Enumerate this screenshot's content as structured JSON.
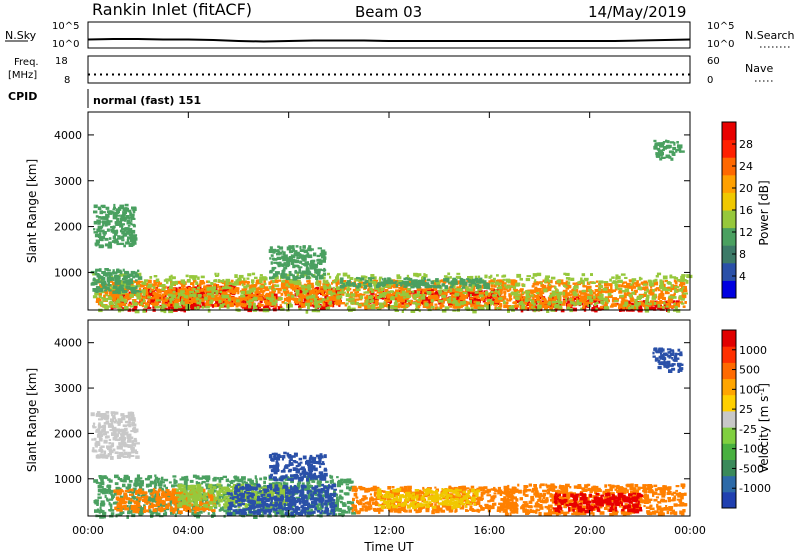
{
  "header": {
    "site": "Rankin Inlet (fitACF)",
    "beam": "Beam 03",
    "date": "14/May/2019"
  },
  "strip_labels": {
    "nsky": "N.Sky",
    "nsearch": "N.Search",
    "freq_top": "Freq.",
    "freq_unit": "[MHz]",
    "nave": "Nave",
    "cpid": "CPID",
    "cpid_value": "normal (fast) 151",
    "noise_left_ticks": [
      "10^5",
      "10^0"
    ],
    "noise_right_ticks": [
      "10^5",
      "10^0"
    ],
    "freq_left_ticks": [
      "18",
      "8"
    ],
    "freq_right_ticks": [
      "60",
      "0"
    ]
  },
  "colorbars": {
    "power": {
      "label": "Power [dB]",
      "ticks": [
        "28",
        "24",
        "20",
        "16",
        "12",
        "8",
        "4"
      ],
      "colors": [
        "#0000e0",
        "#2a50a8",
        "#3c7a68",
        "#4aa060",
        "#96c83c",
        "#f0c800",
        "#ffa000",
        "#ff6800",
        "#ff2000",
        "#e80000"
      ]
    },
    "velocity": {
      "label": "Velocity [m s",
      "label_sup": "-1",
      "label_end": "]",
      "ticks": [
        "1000",
        "500",
        "100",
        "25",
        "-25",
        "-100",
        "-500",
        "-1000"
      ],
      "colors": [
        "#2040b0",
        "#2d6aa8",
        "#3a8a5a",
        "#48b040",
        "#80d040",
        "#c8c8c8",
        "#ffd000",
        "#ffa500",
        "#ff6a00",
        "#ff3000",
        "#e00000"
      ]
    }
  },
  "colors": {
    "red": "#e80000",
    "orange": "#ff8000",
    "yellow": "#f0c800",
    "green": "#4aa060",
    "lgreen": "#96c83c",
    "blue": "#2a50a8",
    "gray": "#c8c8c8"
  },
  "chart_data": [
    {
      "type": "line",
      "panel": "noise",
      "series": [
        {
          "name": "N.Sky",
          "x_hours": [
            0,
            1,
            2,
            3,
            4,
            5,
            6,
            7,
            8,
            9,
            10,
            11,
            12,
            13,
            14,
            15,
            16,
            17,
            18,
            19,
            20,
            21,
            22,
            23,
            24
          ],
          "y_log10": [
            1.5,
            1.6,
            1.6,
            1.5,
            1.5,
            1.4,
            1.2,
            1.1,
            1.2,
            1.3,
            1.3,
            1.3,
            1.2,
            1.2,
            1.2,
            1.2,
            1.2,
            1.2,
            1.2,
            1.2,
            1.2,
            1.2,
            1.3,
            1.4,
            1.5
          ]
        }
      ],
      "ylim_left": [
        0,
        5
      ]
    },
    {
      "type": "scatter",
      "panel": "frequency",
      "series": [
        {
          "name": "Freq.",
          "x_hours": [
            0,
            24
          ],
          "y": [
            11,
            11
          ]
        },
        {
          "name": "Nave",
          "x_hours": [
            0,
            24
          ],
          "y": [
            17,
            17
          ]
        }
      ],
      "ylim_left": [
        8,
        18
      ],
      "ylim_right": [
        0,
        60
      ]
    },
    {
      "type": "heatmap",
      "panel": "power",
      "x_ticks": [
        "00:00",
        "04:00",
        "08:00",
        "12:00",
        "16:00",
        "20:00",
        "00:00"
      ],
      "xlim_hours": [
        0,
        24
      ],
      "ylabel": "Slant Range [km]",
      "y_ticks": [
        1000,
        2000,
        3000,
        4000
      ],
      "ylim_km": [
        180,
        4500
      ],
      "blobs": [
        {
          "x0": 0.9,
          "x1": 4.5,
          "r0": 200,
          "r1": 700,
          "c": "red"
        },
        {
          "x0": 3.8,
          "x1": 5.8,
          "r0": 300,
          "r1": 750,
          "c": "red"
        },
        {
          "x0": 6.0,
          "x1": 7.6,
          "r0": 200,
          "r1": 600,
          "c": "red"
        },
        {
          "x0": 8.2,
          "x1": 10.0,
          "r0": 250,
          "r1": 700,
          "c": "red"
        },
        {
          "x0": 11.0,
          "x1": 16.5,
          "r0": 350,
          "r1": 650,
          "c": "red"
        },
        {
          "x0": 17.0,
          "x1": 20.5,
          "r0": 200,
          "r1": 500,
          "c": "red"
        },
        {
          "x0": 21.0,
          "x1": 23.5,
          "r0": 200,
          "r1": 400,
          "c": "red"
        },
        {
          "x0": 0.3,
          "x1": 10.5,
          "r0": 300,
          "r1": 850,
          "c": "orange"
        },
        {
          "x0": 10.5,
          "x1": 23.8,
          "r0": 250,
          "r1": 850,
          "c": "orange"
        },
        {
          "x0": 0.1,
          "x1": 23.9,
          "r0": 180,
          "r1": 1000,
          "c": "lgreen"
        },
        {
          "x0": 0.1,
          "x1": 2.0,
          "r0": 600,
          "r1": 1100,
          "c": "green"
        },
        {
          "x0": 10.0,
          "x1": 16.0,
          "r0": 700,
          "r1": 900,
          "c": "green"
        },
        {
          "x0": 0.2,
          "x1": 1.8,
          "r0": 1600,
          "r1": 2500,
          "c": "green"
        },
        {
          "x0": 7.2,
          "x1": 9.4,
          "r0": 900,
          "r1": 1600,
          "c": "green"
        },
        {
          "x0": 22.5,
          "x1": 23.6,
          "r0": 3500,
          "r1": 3900,
          "c": "green"
        }
      ]
    },
    {
      "type": "heatmap",
      "panel": "velocity",
      "x_ticks": [
        "00:00",
        "04:00",
        "08:00",
        "12:00",
        "16:00",
        "20:00",
        "00:00"
      ],
      "xlim_hours": [
        0,
        24
      ],
      "xlabel": "Time UT",
      "ylabel": "Slant Range [km]",
      "y_ticks": [
        1000,
        2000,
        3000,
        4000
      ],
      "ylim_km": [
        180,
        4500
      ],
      "blobs": [
        {
          "x0": 0.2,
          "x1": 10.5,
          "r0": 200,
          "r1": 1100,
          "c": "green"
        },
        {
          "x0": 1.0,
          "x1": 5.0,
          "r0": 300,
          "r1": 800,
          "c": "orange"
        },
        {
          "x0": 3.5,
          "x1": 8.0,
          "r0": 400,
          "r1": 900,
          "c": "lgreen"
        },
        {
          "x0": 5.5,
          "x1": 9.8,
          "r0": 250,
          "r1": 900,
          "c": "blue"
        },
        {
          "x0": 10.5,
          "x1": 17.0,
          "r0": 300,
          "r1": 850,
          "c": "orange"
        },
        {
          "x0": 11.5,
          "x1": 15.5,
          "r0": 400,
          "r1": 800,
          "c": "yellow"
        },
        {
          "x0": 16.5,
          "x1": 23.8,
          "r0": 250,
          "r1": 900,
          "c": "orange"
        },
        {
          "x0": 18.5,
          "x1": 22.0,
          "r0": 300,
          "r1": 700,
          "c": "red"
        },
        {
          "x0": 0.1,
          "x1": 1.9,
          "r0": 1500,
          "r1": 2500,
          "c": "gray"
        },
        {
          "x0": 7.2,
          "x1": 9.4,
          "r0": 1000,
          "r1": 1600,
          "c": "blue"
        },
        {
          "x0": 22.5,
          "x1": 23.6,
          "r0": 3400,
          "r1": 3900,
          "c": "blue"
        }
      ]
    }
  ]
}
